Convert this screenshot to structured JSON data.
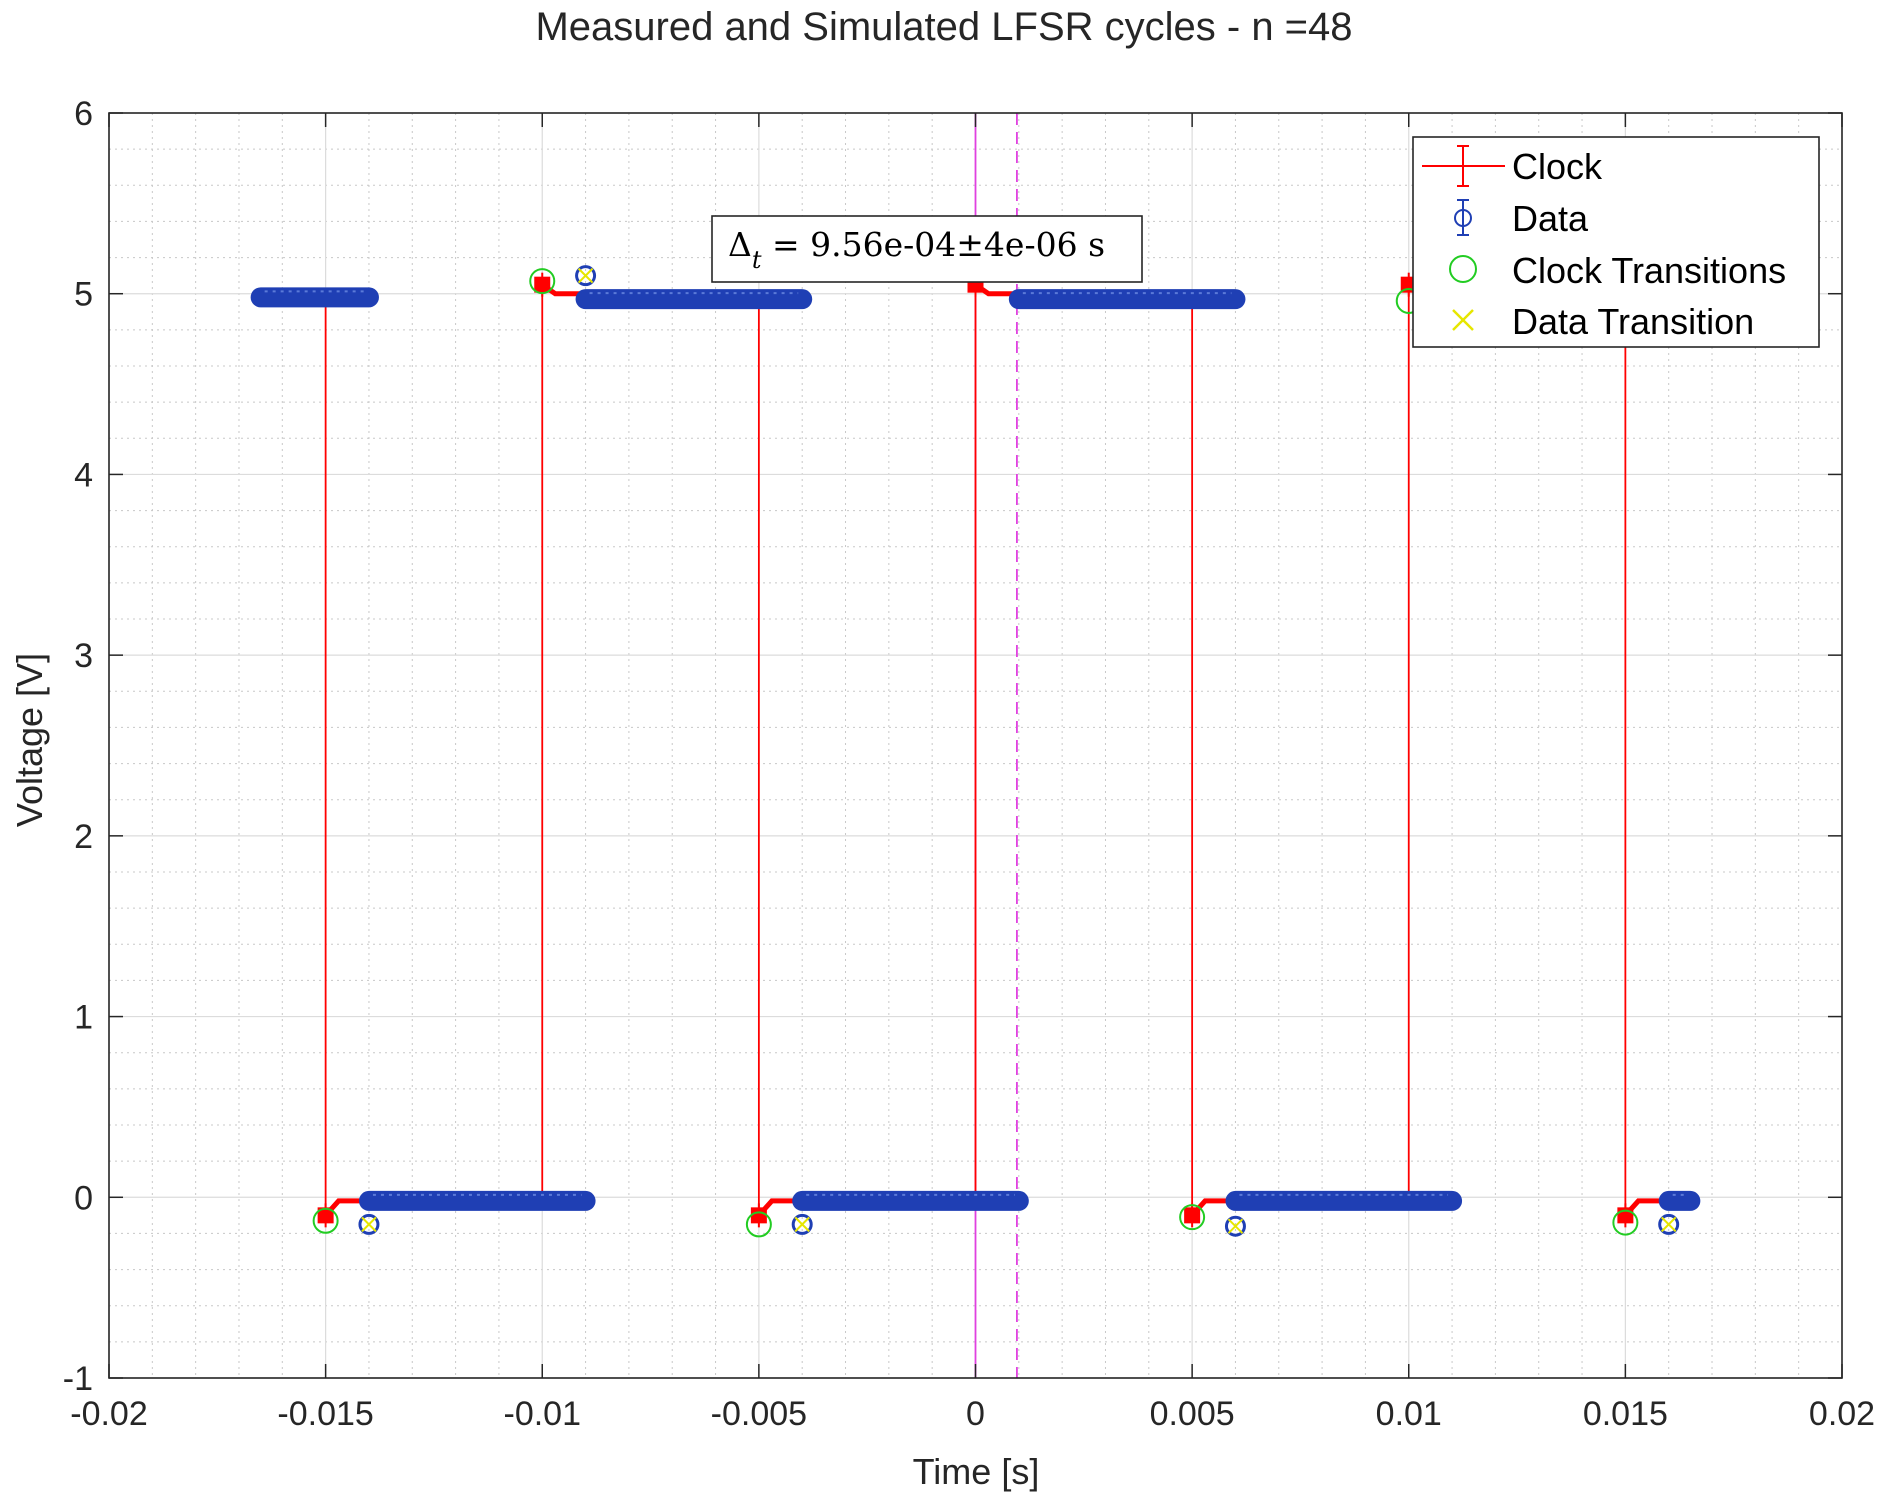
{
  "chart_data": {
    "type": "line",
    "title": "Measured and Simulated LFSR cycles - n =48",
    "xlabel": "Time [s]",
    "ylabel": "Voltage [V]",
    "xlim": [
      -0.02,
      0.02
    ],
    "ylim": [
      -1,
      6
    ],
    "xticks": [
      -0.02,
      -0.015,
      -0.01,
      -0.005,
      0,
      0.005,
      0.01,
      0.015,
      0.02
    ],
    "xtick_labels": [
      "-0.02",
      "-0.015",
      "-0.01",
      "-0.005",
      "0",
      "0.005",
      "0.01",
      "0.015",
      "0.02"
    ],
    "yticks": [
      -1,
      0,
      1,
      2,
      3,
      4,
      5,
      6
    ],
    "ytick_labels": [
      "-1",
      "0",
      "1",
      "2",
      "3",
      "4",
      "5",
      "6"
    ],
    "grid": true,
    "minor_grid": true,
    "legend_position": "top-right",
    "series": [
      {
        "name": "Clock",
        "color": "#ff0000",
        "style": "line-errorbar",
        "segments": [
          {
            "x": [
              -0.015,
              -0.015
            ],
            "y": [
              5.0,
              -0.1
            ]
          },
          {
            "x": [
              -0.015,
              -0.0147,
              -0.014
            ],
            "y": [
              -0.1,
              -0.02,
              -0.02
            ]
          },
          {
            "x": [
              -0.01,
              -0.01
            ],
            "y": [
              -0.02,
              5.05
            ]
          },
          {
            "x": [
              -0.01,
              -0.0097,
              -0.009
            ],
            "y": [
              5.05,
              5.0,
              5.0
            ]
          },
          {
            "x": [
              -0.005,
              -0.005
            ],
            "y": [
              5.0,
              -0.1
            ]
          },
          {
            "x": [
              -0.005,
              -0.0047,
              -0.004
            ],
            "y": [
              -0.1,
              -0.02,
              -0.02
            ]
          },
          {
            "x": [
              0,
              0
            ],
            "y": [
              -0.02,
              5.05
            ]
          },
          {
            "x": [
              0,
              0.0003,
              0.001
            ],
            "y": [
              5.05,
              5.0,
              5.0
            ]
          },
          {
            "x": [
              0.005,
              0.005
            ],
            "y": [
              5.0,
              -0.1
            ]
          },
          {
            "x": [
              0.005,
              0.0053,
              0.006
            ],
            "y": [
              -0.1,
              -0.02,
              -0.02
            ]
          },
          {
            "x": [
              0.01,
              0.01
            ],
            "y": [
              -0.02,
              5.05
            ]
          },
          {
            "x": [
              0.01,
              0.0103,
              0.011
            ],
            "y": [
              5.05,
              5.0,
              5.0
            ]
          },
          {
            "x": [
              0.015,
              0.015
            ],
            "y": [
              5.0,
              -0.1
            ]
          },
          {
            "x": [
              0.015,
              0.0153,
              0.016
            ],
            "y": [
              -0.1,
              -0.02,
              -0.02
            ]
          }
        ]
      },
      {
        "name": "Data",
        "color": "#1f3fb4",
        "style": "marker-errorbar",
        "runs": [
          {
            "x_start": -0.0165,
            "x_end": -0.014,
            "y": 4.98
          },
          {
            "x_start": -0.014,
            "x_end": -0.009,
            "y": -0.02
          },
          {
            "x_start": -0.009,
            "x_end": -0.004,
            "y": 4.97
          },
          {
            "x_start": -0.004,
            "x_end": 0.001,
            "y": -0.02
          },
          {
            "x_start": 0.001,
            "x_end": 0.006,
            "y": 4.97
          },
          {
            "x_start": 0.006,
            "x_end": 0.011,
            "y": -0.02
          },
          {
            "x_start": 0.016,
            "x_end": 0.0165,
            "y": -0.02
          }
        ]
      },
      {
        "name": "Clock Transitions",
        "color": "#22cc22",
        "style": "circle",
        "x": [
          -0.015,
          -0.01,
          -0.005,
          0.005,
          0.01,
          0.015
        ],
        "y": [
          -0.13,
          5.07,
          -0.15,
          -0.11,
          4.96,
          -0.14
        ]
      },
      {
        "name": "Data Transition",
        "color": "#e6e600",
        "style": "x",
        "x": [
          -0.014,
          -0.009,
          -0.004,
          0.006,
          0.016
        ],
        "y": [
          -0.15,
          5.1,
          -0.15,
          -0.16,
          -0.15
        ]
      }
    ],
    "reference_lines": [
      {
        "x": 0,
        "style": "solid",
        "color": "#e040e0"
      },
      {
        "x": 0.000956,
        "style": "dashed",
        "color": "#e040e0"
      }
    ],
    "annotation": {
      "text_parts": [
        "Δ",
        "t",
        " = 9.56e-04±4e-06 s"
      ],
      "anchor_x": -0.0061,
      "anchor_y": 5.3
    }
  }
}
